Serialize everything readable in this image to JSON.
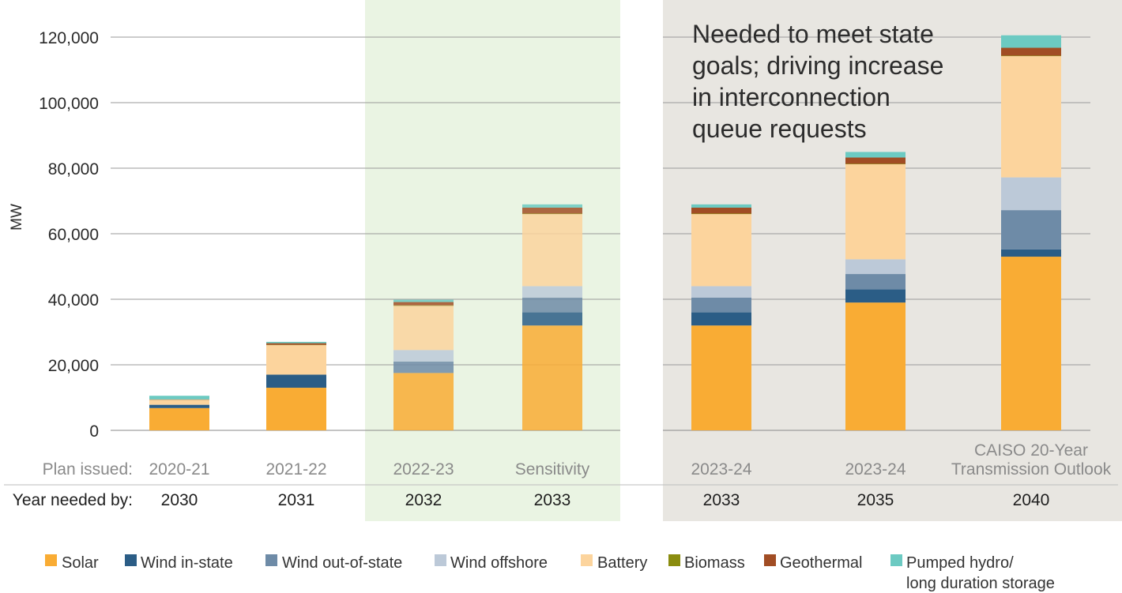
{
  "chart_data": {
    "type": "bar",
    "stacked": true,
    "ylabel": "MW",
    "ylim": [
      0,
      120000
    ],
    "yticks": [
      {
        "value": 0,
        "label": "0"
      },
      {
        "value": 20000,
        "label": "20,000"
      },
      {
        "value": 40000,
        "label": "40,000"
      },
      {
        "value": 60000,
        "label": "60,000"
      },
      {
        "value": 80000,
        "label": "80,000"
      },
      {
        "value": 100000,
        "label": "100,000"
      },
      {
        "value": 120000,
        "label": "120,000"
      }
    ],
    "grid": true,
    "row_labels": {
      "plan": "Plan issued:",
      "year": "Year needed by:"
    },
    "categories": [
      {
        "plan": [
          "2020-21"
        ],
        "year": "2030"
      },
      {
        "plan": [
          "2021-22"
        ],
        "year": "2031"
      },
      {
        "plan": [
          "2022-23"
        ],
        "year": "2032"
      },
      {
        "plan": [
          "Sensitivity"
        ],
        "year": "2033"
      },
      {
        "plan": [
          "2023-24"
        ],
        "year": "2033"
      },
      {
        "plan": [
          "2023-24"
        ],
        "year": "2035"
      },
      {
        "plan": [
          "CAISO 20-Year",
          "Transmission Outlook"
        ],
        "year": "2040"
      }
    ],
    "series": [
      {
        "name": "Solar",
        "color": "#f9ac34",
        "values": [
          6800,
          13000,
          17500,
          32000,
          32000,
          39000,
          53000
        ]
      },
      {
        "name": "Wind in-state",
        "color": "#2b5d86",
        "values": [
          1000,
          4000,
          0,
          4000,
          4000,
          4000,
          2200
        ]
      },
      {
        "name": "Wind out-of-state",
        "color": "#6e8ba7",
        "values": [
          0,
          0,
          3500,
          4500,
          4500,
          4700,
          12000
        ]
      },
      {
        "name": "Wind offshore",
        "color": "#bcc9d8",
        "values": [
          0,
          0,
          3500,
          3500,
          3500,
          4500,
          10000
        ]
      },
      {
        "name": "Battery",
        "color": "#fcd49d",
        "values": [
          1500,
          9000,
          13500,
          22000,
          22000,
          29000,
          37000
        ]
      },
      {
        "name": "Biomass",
        "color": "#8a8c0f",
        "values": [
          50,
          100,
          150,
          150,
          150,
          150,
          150
        ]
      },
      {
        "name": "Geothermal",
        "color": "#a14d24",
        "values": [
          100,
          500,
          1000,
          1800,
          1800,
          1900,
          2400
        ]
      },
      {
        "name": "Pumped hydro/ long duration storage",
        "color": "#6ccac2",
        "values": [
          1100,
          400,
          700,
          1000,
          1000,
          1700,
          3800
        ]
      }
    ],
    "highlight_regions": [
      {
        "categories": [
          2,
          3
        ],
        "color": "#eaf4e3"
      },
      {
        "categories": [
          4,
          6
        ],
        "color": "#e8e6e1"
      }
    ],
    "annotation": [
      "Needed to meet state",
      "goals; driving increase",
      "in interconnection",
      "queue requests"
    ],
    "legend": {
      "placement": "bottom",
      "entries": [
        "Solar",
        "Wind in-state",
        "Wind out-of-state",
        "Wind offshore",
        "Battery",
        "Biomass",
        "Geothermal",
        "Pumped hydro/",
        "long duration storage"
      ]
    }
  }
}
